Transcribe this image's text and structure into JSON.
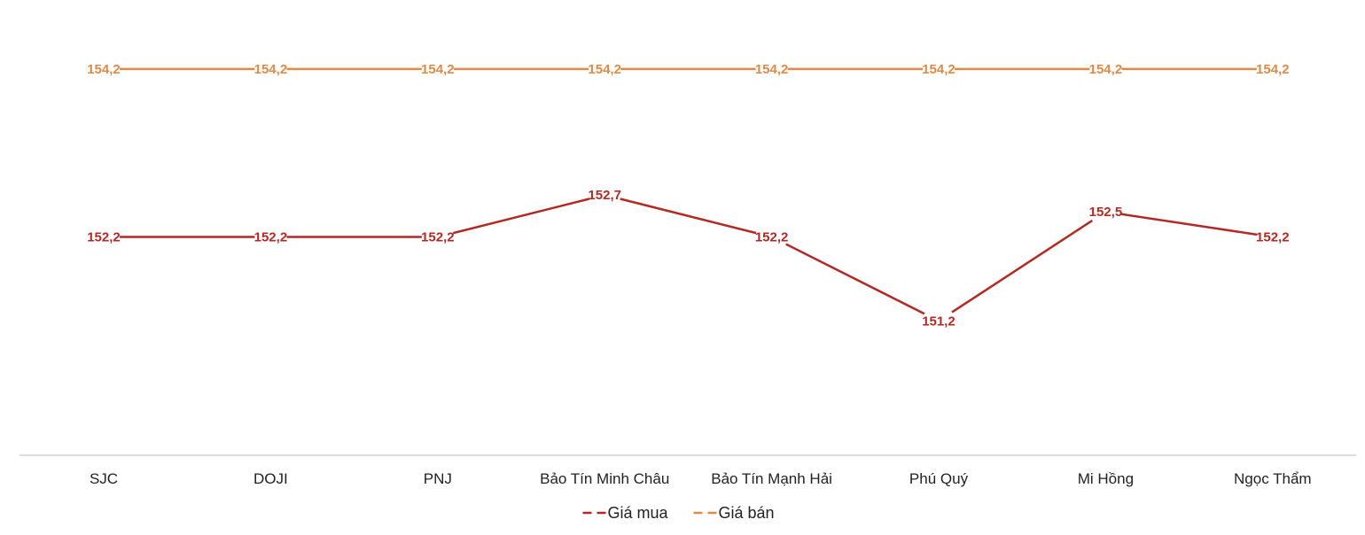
{
  "chart_data": {
    "type": "line",
    "title": "",
    "xlabel": "",
    "ylabel": "",
    "categories": [
      "SJC",
      "DOJI",
      "PNJ",
      "Bảo Tín Minh Châu",
      "Bảo Tín Mạnh Hải",
      "Phú Quý",
      "Mi Hồng",
      "Ngọc Thẩm"
    ],
    "series": [
      {
        "name": "Giá mua",
        "color": "#b22a23",
        "values": [
          152.2,
          152.2,
          152.2,
          152.7,
          152.2,
          151.2,
          152.5,
          152.2
        ],
        "labels": [
          "152,2",
          "152,2",
          "152,2",
          "152,7",
          "152,2",
          "151,2",
          "152,5",
          "152,2"
        ]
      },
      {
        "name": "Giá bán",
        "color": "#e08a45",
        "values": [
          154.2,
          154.2,
          154.2,
          154.2,
          154.2,
          154.2,
          154.2,
          154.2
        ],
        "labels": [
          "154,2",
          "154,2",
          "154,2",
          "154,2",
          "154,2",
          "154,2",
          "154,2",
          "154,2"
        ]
      }
    ],
    "ylim": [
      149.6,
      154.6
    ],
    "grid": false,
    "legend": "bottom-center"
  }
}
